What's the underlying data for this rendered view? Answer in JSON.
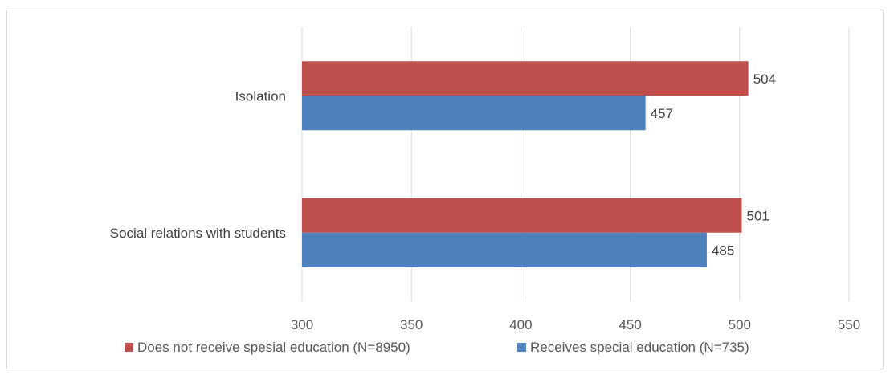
{
  "chart_data": {
    "type": "bar",
    "orientation": "horizontal",
    "categories": [
      "Isolation",
      "Social relations with students"
    ],
    "series": [
      {
        "name": "Does not receive spesial education (N=8950)",
        "values": [
          504,
          501
        ],
        "color": "#c0504d"
      },
      {
        "name": "Receives special education (N=735)",
        "values": [
          457,
          485
        ],
        "color": "#4f81bd"
      }
    ],
    "xlim": [
      300,
      550
    ],
    "xticks": [
      300,
      350,
      400,
      450,
      500,
      550
    ],
    "grid": true,
    "legend": "bottom",
    "title": "",
    "xlabel": "",
    "ylabel": ""
  }
}
